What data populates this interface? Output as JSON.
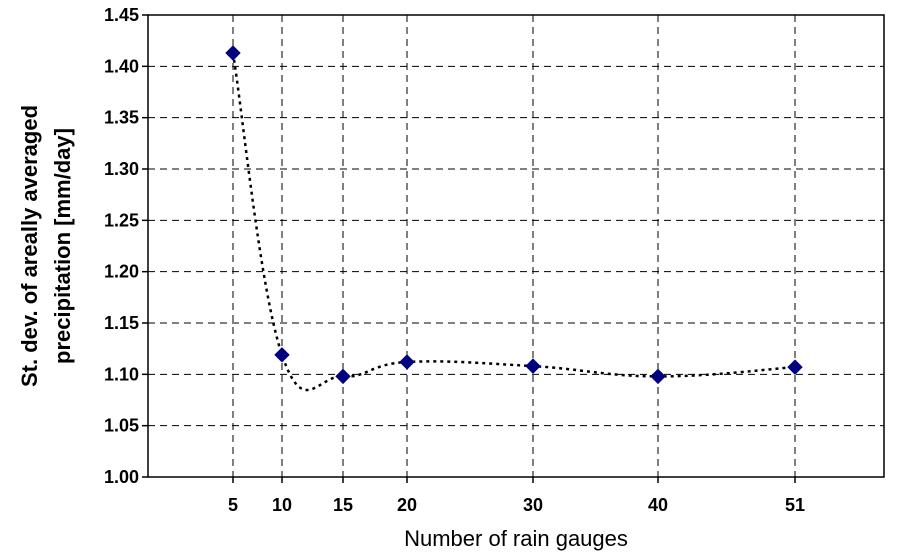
{
  "chart_data": {
    "type": "line",
    "title": "",
    "xlabel": "Number of rain gauges",
    "ylabel_lines": [
      "St. dev. of areally averaged",
      "precipitation [mm/day]"
    ],
    "x_categories": [
      "5",
      "10",
      "15",
      "20",
      "30",
      "40",
      "51"
    ],
    "ylim": [
      1.0,
      1.45
    ],
    "y_ticks": [
      "1.00",
      "1.05",
      "1.10",
      "1.15",
      "1.20",
      "1.25",
      "1.30",
      "1.35",
      "1.40",
      "1.45"
    ],
    "grid": true,
    "series": [
      {
        "values": [
          1.413,
          1.119,
          1.098,
          1.112,
          1.108,
          1.098,
          1.107
        ],
        "color": "#00007f",
        "marker": "diamond",
        "line_style": "dotted"
      }
    ]
  }
}
